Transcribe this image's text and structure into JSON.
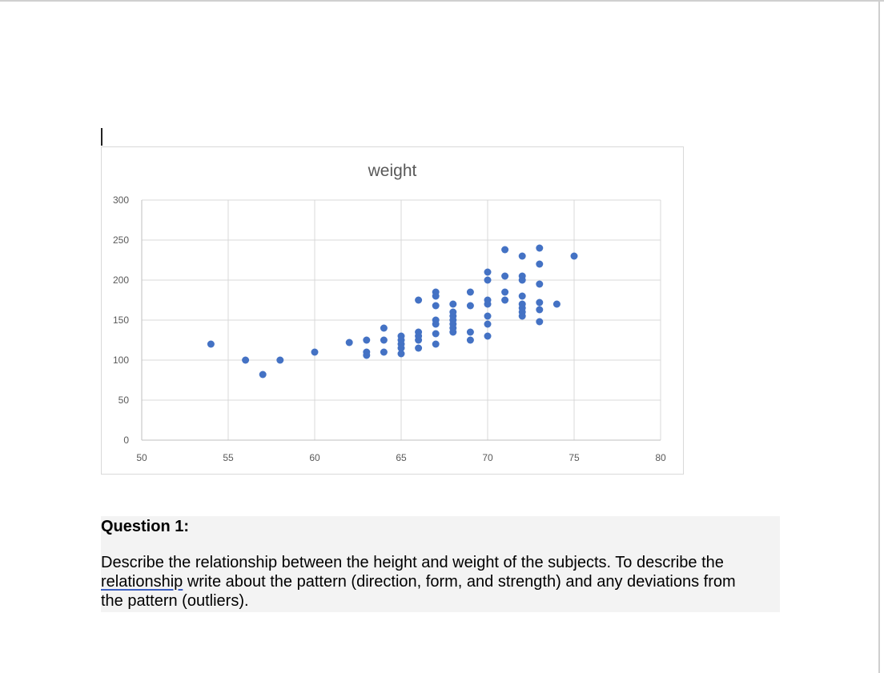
{
  "chart_data": {
    "type": "scatter",
    "title": "weight",
    "xlabel": "",
    "ylabel": "",
    "xlim": [
      50,
      80
    ],
    "ylim": [
      0,
      300
    ],
    "x_ticks": [
      50,
      55,
      60,
      65,
      70,
      75,
      80
    ],
    "y_ticks": [
      0,
      50,
      100,
      150,
      200,
      250,
      300
    ],
    "grid": true,
    "legend": "none",
    "color": "#4472c4",
    "points": [
      [
        54,
        120
      ],
      [
        56,
        100
      ],
      [
        57,
        82
      ],
      [
        58,
        100
      ],
      [
        60,
        110
      ],
      [
        62,
        122
      ],
      [
        63,
        125
      ],
      [
        63,
        110
      ],
      [
        63,
        106
      ],
      [
        64,
        140
      ],
      [
        64,
        125
      ],
      [
        64,
        110
      ],
      [
        65,
        130
      ],
      [
        65,
        125
      ],
      [
        65,
        120
      ],
      [
        65,
        115
      ],
      [
        65,
        108
      ],
      [
        66,
        175
      ],
      [
        66,
        135
      ],
      [
        66,
        130
      ],
      [
        66,
        125
      ],
      [
        66,
        115
      ],
      [
        67,
        185
      ],
      [
        67,
        180
      ],
      [
        67,
        168
      ],
      [
        67,
        150
      ],
      [
        67,
        145
      ],
      [
        67,
        133
      ],
      [
        67,
        120
      ],
      [
        68,
        170
      ],
      [
        68,
        160
      ],
      [
        68,
        155
      ],
      [
        68,
        150
      ],
      [
        68,
        145
      ],
      [
        68,
        140
      ],
      [
        68,
        135
      ],
      [
        69,
        185
      ],
      [
        69,
        168
      ],
      [
        69,
        135
      ],
      [
        69,
        125
      ],
      [
        70,
        210
      ],
      [
        70,
        200
      ],
      [
        70,
        175
      ],
      [
        70,
        170
      ],
      [
        70,
        155
      ],
      [
        70,
        145
      ],
      [
        70,
        130
      ],
      [
        71,
        238
      ],
      [
        71,
        205
      ],
      [
        71,
        185
      ],
      [
        71,
        175
      ],
      [
        72,
        230
      ],
      [
        72,
        205
      ],
      [
        72,
        200
      ],
      [
        72,
        180
      ],
      [
        72,
        170
      ],
      [
        72,
        165
      ],
      [
        72,
        160
      ],
      [
        72,
        155
      ],
      [
        73,
        240
      ],
      [
        73,
        220
      ],
      [
        73,
        195
      ],
      [
        73,
        172
      ],
      [
        73,
        163
      ],
      [
        73,
        148
      ],
      [
        74,
        170
      ],
      [
        75,
        230
      ]
    ]
  },
  "question": {
    "heading": "Question 1:",
    "body_part1": "Describe the relationship between the height and weight of the subjects. To describe the ",
    "body_link": "relationship",
    "body_part2": " write about the pattern (direction, form, and strength) and any deviations from the pattern (outliers)."
  }
}
